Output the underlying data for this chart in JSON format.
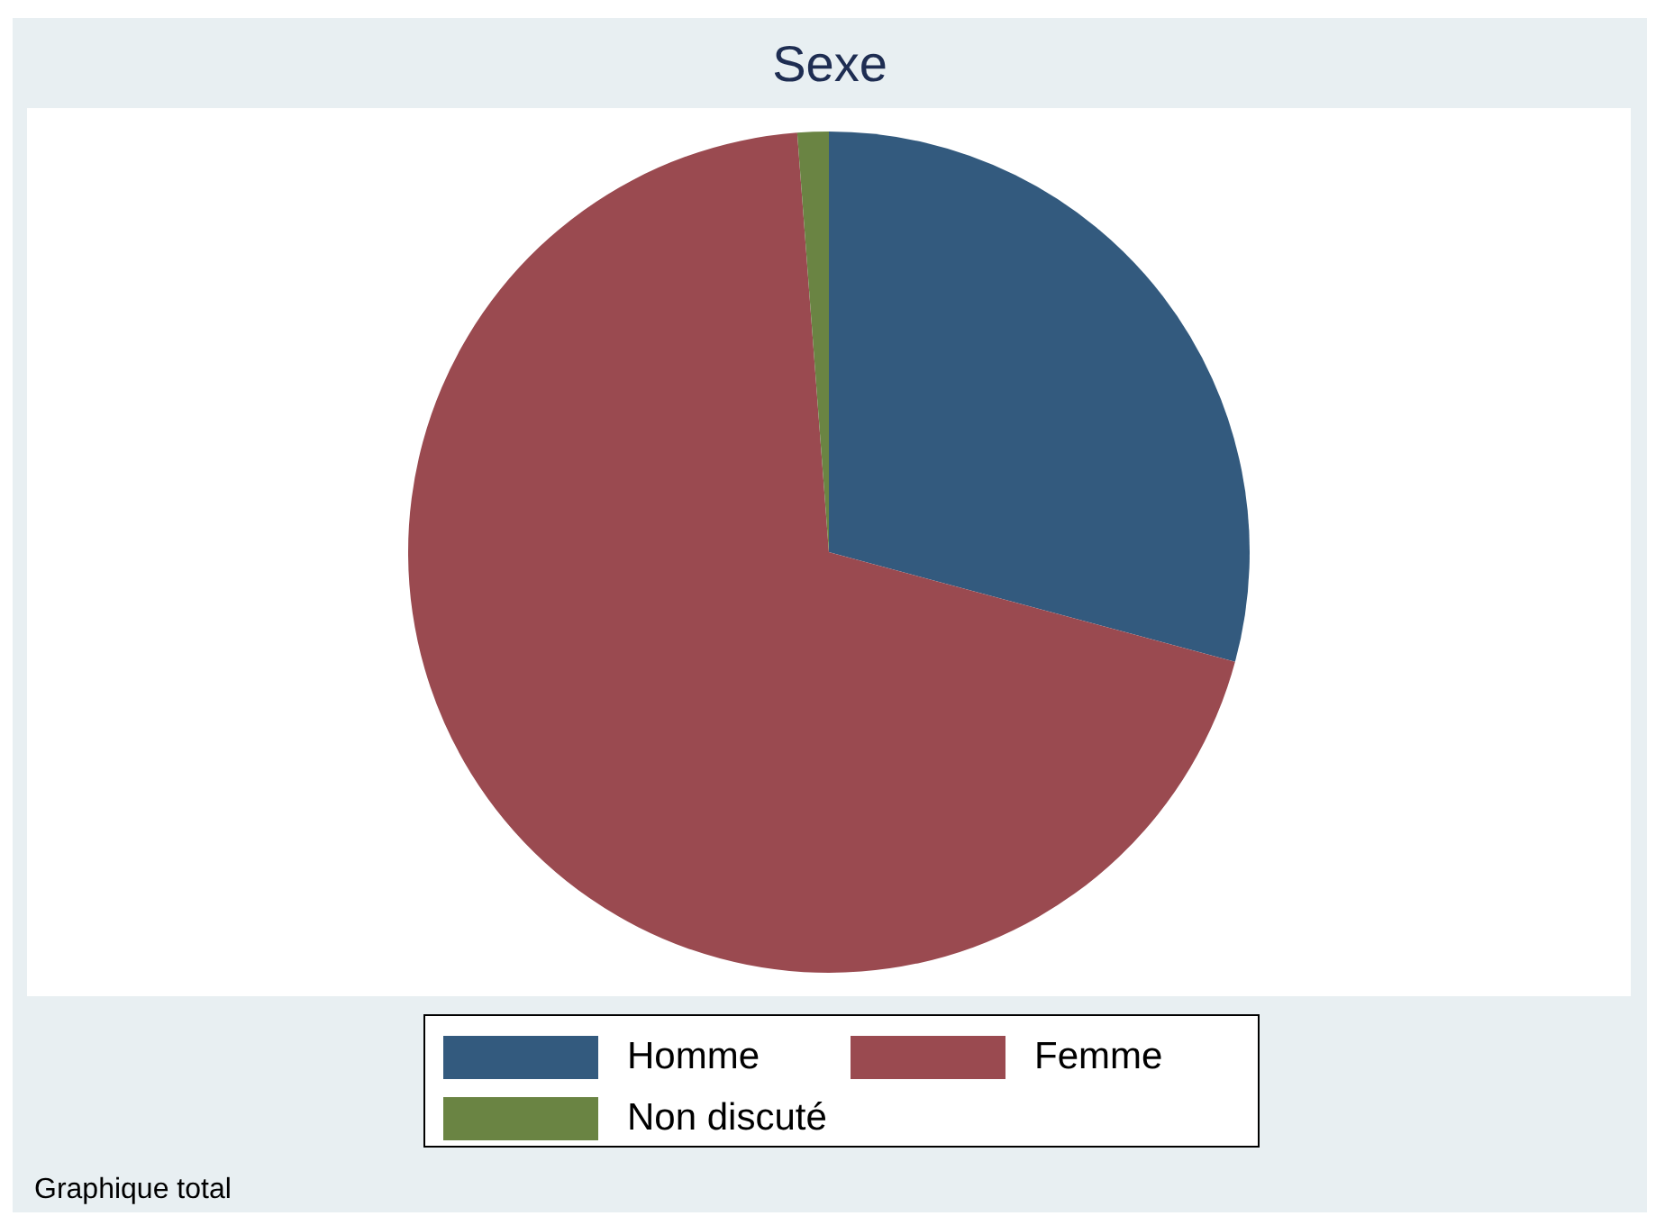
{
  "chart_data": {
    "type": "pie",
    "title": "Sexe",
    "categories": [
      "Homme",
      "Femme",
      "Non discuté"
    ],
    "values": [
      29.2,
      69.6,
      1.2
    ],
    "colors": [
      "#335a7e",
      "#9a4a50",
      "#6a8443"
    ],
    "legend": "bottom",
    "annotations": [
      "Graphique total"
    ]
  }
}
